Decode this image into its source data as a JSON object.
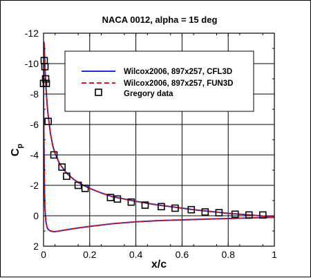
{
  "chart_data": {
    "type": "line",
    "title": "NACA 0012, alpha = 15 deg",
    "xlabel": "x/c",
    "ylabel": "C",
    "ylabel_subscript": "p",
    "xlim": [
      0,
      1
    ],
    "ylim": [
      2,
      -12
    ],
    "y_inverted": true,
    "grid": true,
    "legend_placement": "top-right",
    "x_ticks": [
      0,
      0.2,
      0.4,
      0.6,
      0.8,
      1
    ],
    "x_tick_labels": [
      "0",
      "0.2",
      "0.4",
      "0.6",
      "0.8",
      "1"
    ],
    "y_ticks": [
      -12,
      -10,
      -8,
      -6,
      -4,
      -2,
      0,
      2
    ],
    "y_tick_labels": [
      "-12",
      "-10",
      "-8",
      "-6",
      "-4",
      "-2",
      "0",
      "2"
    ],
    "series": [
      {
        "name": "Wilcox2006, 897x257, CFL3D",
        "style": "solid",
        "color": "#1a2ee0",
        "upper": {
          "x": [
            0.0,
            0.001,
            0.002,
            0.004,
            0.006,
            0.01,
            0.015,
            0.02,
            0.03,
            0.04,
            0.05,
            0.07,
            0.1,
            0.13,
            0.16,
            0.2,
            0.25,
            0.3,
            0.35,
            0.4,
            0.45,
            0.5,
            0.55,
            0.6,
            0.65,
            0.7,
            0.75,
            0.8,
            0.85,
            0.9,
            0.95,
            1.0
          ],
          "y": [
            -8.0,
            -10.5,
            -11.4,
            -10.8,
            -9.8,
            -8.6,
            -7.4,
            -6.6,
            -5.4,
            -4.6,
            -4.1,
            -3.4,
            -2.8,
            -2.4,
            -2.1,
            -1.8,
            -1.5,
            -1.25,
            -1.1,
            -0.95,
            -0.82,
            -0.7,
            -0.6,
            -0.5,
            -0.4,
            -0.32,
            -0.24,
            -0.16,
            -0.1,
            -0.05,
            0.02,
            0.08
          ]
        },
        "lower": {
          "x": [
            0.0,
            0.002,
            0.004,
            0.006,
            0.01,
            0.015,
            0.02,
            0.03,
            0.045,
            0.06,
            0.08,
            0.1,
            0.15,
            0.2,
            0.3,
            0.4,
            0.5,
            0.6,
            0.7,
            0.8,
            0.9,
            1.0
          ],
          "y": [
            -8.0,
            -4.5,
            -1.8,
            -0.5,
            0.35,
            0.75,
            0.9,
            1.0,
            1.05,
            1.02,
            0.97,
            0.92,
            0.8,
            0.7,
            0.52,
            0.4,
            0.32,
            0.27,
            0.22,
            0.18,
            0.14,
            0.1
          ]
        }
      },
      {
        "name": "Wilcox2006, 897x257, FUN3D",
        "style": "dashed",
        "color": "#d9141c",
        "upper": {
          "x": [
            0.0,
            0.001,
            0.002,
            0.004,
            0.006,
            0.01,
            0.015,
            0.02,
            0.03,
            0.04,
            0.05,
            0.07,
            0.1,
            0.13,
            0.16,
            0.2,
            0.25,
            0.3,
            0.35,
            0.4,
            0.45,
            0.5,
            0.55,
            0.6,
            0.65,
            0.7,
            0.75,
            0.8,
            0.85,
            0.9,
            0.95,
            1.0
          ],
          "y": [
            -8.0,
            -10.5,
            -11.4,
            -10.8,
            -9.8,
            -8.6,
            -7.4,
            -6.6,
            -5.4,
            -4.6,
            -4.1,
            -3.4,
            -2.8,
            -2.4,
            -2.1,
            -1.8,
            -1.5,
            -1.25,
            -1.1,
            -0.95,
            -0.82,
            -0.7,
            -0.6,
            -0.5,
            -0.4,
            -0.32,
            -0.24,
            -0.16,
            -0.1,
            -0.05,
            0.02,
            0.08
          ]
        },
        "lower": {
          "x": [
            0.0,
            0.002,
            0.004,
            0.006,
            0.01,
            0.015,
            0.02,
            0.03,
            0.045,
            0.06,
            0.08,
            0.1,
            0.15,
            0.2,
            0.3,
            0.4,
            0.5,
            0.6,
            0.7,
            0.8,
            0.9,
            1.0
          ],
          "y": [
            -8.0,
            -4.5,
            -1.8,
            -0.5,
            0.35,
            0.75,
            0.9,
            1.0,
            1.05,
            1.02,
            0.97,
            0.92,
            0.8,
            0.7,
            0.52,
            0.4,
            0.32,
            0.27,
            0.22,
            0.18,
            0.14,
            0.1
          ]
        }
      },
      {
        "name": "Gregory data",
        "style": "open-square-markers",
        "color": "#000000",
        "x": [
          0.0,
          0.003,
          0.006,
          0.009,
          0.012,
          0.02,
          0.045,
          0.08,
          0.1,
          0.15,
          0.18,
          0.29,
          0.32,
          0.38,
          0.44,
          0.51,
          0.57,
          0.64,
          0.7,
          0.76,
          0.83,
          0.89,
          0.95
        ],
        "y": [
          -8.7,
          -10.2,
          -9.8,
          -9.0,
          -8.7,
          -6.2,
          -4.0,
          -3.2,
          -2.6,
          -2.0,
          -1.8,
          -1.2,
          -1.1,
          -0.9,
          -0.7,
          -0.6,
          -0.5,
          -0.4,
          -0.25,
          -0.2,
          -0.1,
          -0.05,
          -0.05
        ]
      }
    ]
  }
}
